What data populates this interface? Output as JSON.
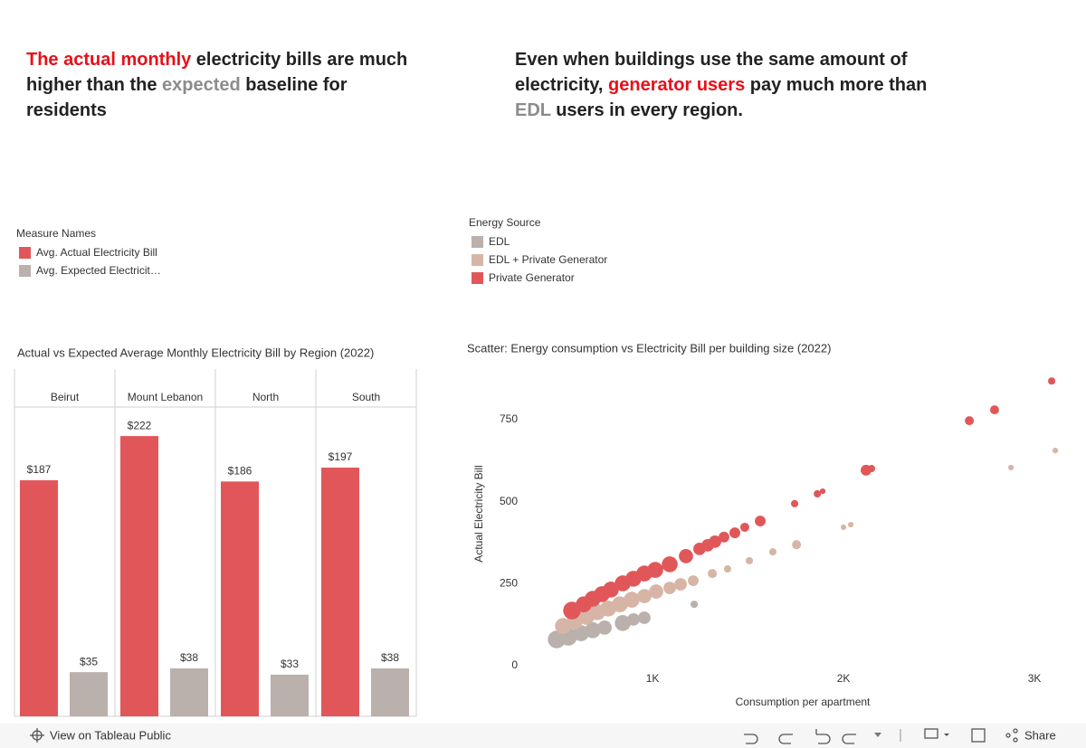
{
  "headlines": [
    {
      "parts": [
        {
          "text": "The actual monthly",
          "color": "#e8101a"
        },
        {
          "text": " electricity bills are much higher than the "
        },
        {
          "text": "expected",
          "color": "#8c8c8c"
        },
        {
          "text": " baseline for residents"
        }
      ]
    },
    {
      "parts": [
        {
          "text": "Even when buildings use the same amount of electricity, "
        },
        {
          "text": "generator users",
          "color": "#e8101a"
        },
        {
          "text": " pay much more than "
        },
        {
          "text": "EDL",
          "color": "#8c8c8c"
        },
        {
          "text": " users in every region."
        }
      ]
    }
  ],
  "chart_data": [
    {
      "type": "bar",
      "title": "Actual vs Expected Average Monthly Electricity Bill by Region (2022)",
      "legend_title": "Measure Names",
      "categories": [
        "Beirut",
        "Mount Lebanon",
        "North",
        "South"
      ],
      "series": [
        {
          "name": "Avg. Actual Electricity Bill",
          "color": "#e15759",
          "values": [
            187,
            222,
            186,
            197
          ],
          "value_labels": [
            "$187",
            "$222",
            "$186",
            "$197"
          ]
        },
        {
          "name": "Avg. Expected Electricit…",
          "color": "#bab0ac",
          "values": [
            35,
            38,
            33,
            38
          ],
          "value_labels": [
            "$35",
            "$38",
            "$33",
            "$38"
          ]
        }
      ],
      "ylim": [
        0,
        245
      ]
    },
    {
      "type": "scatter",
      "title": "Scatter: Energy consumption vs Electricity Bill per building size (2022)",
      "legend_title": "Energy Source",
      "x_label": "Consumption per apartment",
      "y_label": "Actual Electricity Bill",
      "xlim": [
        142,
        3175
      ],
      "ylim": [
        -149,
        899
      ],
      "xticks": [
        {
          "value": 1000,
          "label": "1K"
        },
        {
          "value": 2000,
          "label": "2K"
        },
        {
          "value": 3000,
          "label": "3K"
        }
      ],
      "yticks": [
        0,
        250,
        500,
        750
      ],
      "grid": false,
      "series": [
        {
          "name": "EDL",
          "color": "#bab0ac",
          "x": [
            498,
            559,
            626,
            687,
            749,
            844,
            900,
            957,
            1218
          ],
          "values": [
            80,
            88,
            99,
            108,
            116,
            130,
            141,
            146,
            187
          ],
          "sizes": [
            9,
            9,
            8,
            8,
            7,
            8,
            6,
            6,
            3
          ]
        },
        {
          "name": "EDL + Private Generator",
          "color": "#d7b5a6",
          "x": [
            531,
            592,
            654,
            711,
            768,
            829,
            891,
            957,
            1019,
            1090,
            1147,
            1213,
            1313,
            1393,
            1507,
            1630,
            1754,
            2000,
            2038,
            2877,
            3109
          ],
          "values": [
            121,
            135,
            149,
            163,
            174,
            187,
            201,
            212,
            226,
            237,
            248,
            259,
            281,
            295,
            320,
            347,
            369,
            422,
            430,
            604,
            656
          ],
          "sizes": [
            8,
            8,
            8,
            8,
            8,
            8,
            8,
            7,
            7,
            6,
            6,
            5,
            4,
            3,
            3,
            3,
            4,
            2,
            2,
            2,
            2
          ]
        },
        {
          "name": "Private Generator",
          "color": "#e15759",
          "x": [
            578,
            640,
            687,
            735,
            782,
            844,
            900,
            957,
            1014,
            1090,
            1175,
            1246,
            1289,
            1327,
            1374,
            1431,
            1483,
            1564,
            1744,
            1863,
            1891,
            2118,
            2147,
            2659,
            2791,
            3090
          ],
          "values": [
            168,
            187,
            204,
            218,
            232,
            251,
            265,
            281,
            292,
            309,
            334,
            356,
            367,
            378,
            392,
            405,
            422,
            441,
            494,
            524,
            532,
            596,
            601,
            747,
            780,
            868
          ],
          "sizes": [
            9,
            8,
            8,
            8,
            8,
            8,
            8,
            8,
            8,
            8,
            7,
            6,
            6,
            6,
            5,
            5,
            4,
            5,
            3,
            3,
            2,
            5,
            3,
            4,
            4,
            3
          ]
        }
      ]
    }
  ],
  "toolbar": {
    "view_link": "View on Tableau Public",
    "share": "Share"
  }
}
